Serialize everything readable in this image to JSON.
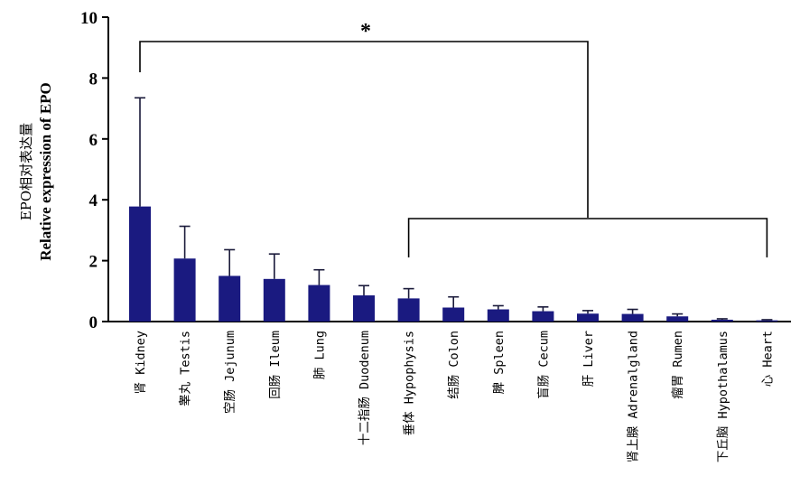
{
  "chart_data": {
    "type": "bar",
    "ylabel": "EPO相对表达量",
    "ylabel_en": "Relative expression of EPO",
    "ylim": [
      0,
      10
    ],
    "yticks": [
      "0",
      "2",
      "4",
      "6",
      "8",
      "10"
    ],
    "categories": [
      "肾 Kidney",
      "睾丸 Testis",
      "空肠 Jejunum",
      "回肠 Ileum",
      "肺 Lung",
      "十二指肠 Duodenum",
      "垂体 Hypophysis",
      "结肠 Colon",
      "脾 Spleen",
      "盲肠 Cecum",
      "肝 Liver",
      "肾上腺 Adrenalgland",
      "瘤胃 Rumen",
      "下丘脑 Hypothalamus",
      "心 Heart"
    ],
    "values": [
      3.78,
      2.07,
      1.5,
      1.4,
      1.2,
      0.86,
      0.76,
      0.46,
      0.4,
      0.34,
      0.26,
      0.25,
      0.17,
      0.06,
      0.04
    ],
    "errors": [
      3.57,
      1.06,
      0.86,
      0.82,
      0.5,
      0.32,
      0.32,
      0.35,
      0.12,
      0.14,
      0.1,
      0.15,
      0.08,
      0.03,
      0.02
    ],
    "bar_color": "#1a1a80",
    "significance": {
      "label": "*"
    }
  }
}
